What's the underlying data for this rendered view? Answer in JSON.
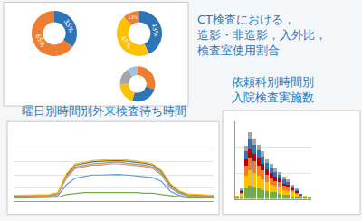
{
  "chart_data": [
    {
      "type": "pie",
      "title": "CT検査における，\n造影・非造影，入外比，\n検査室使用割合",
      "values": [
        35,
        65
      ],
      "colors": [
        "#2e75b6",
        "#ed7d31"
      ],
      "data_labels": true,
      "value_labels": [
        "35%",
        "65%"
      ]
    },
    {
      "type": "pie",
      "values": [
        43,
        45,
        12
      ],
      "colors": [
        "#2e75b6",
        "#ffc000",
        "#ed7d31"
      ],
      "data_labels": true,
      "value_labels": [
        "43%",
        "45%",
        "12%"
      ]
    },
    {
      "type": "pie",
      "values": [
        30,
        25,
        20,
        15,
        10
      ],
      "colors": [
        "#ed7d31",
        "#2e75b6",
        "#ffc000",
        "#a5a5a5",
        "#9dc3e6"
      ],
      "data_labels": false
    },
    {
      "type": "line",
      "title": "曜日別時間別外来検査待ち時間",
      "categories": [
        null,
        null,
        null,
        null,
        null,
        null,
        null,
        null,
        null,
        null,
        null,
        null,
        null,
        null,
        null,
        null,
        null,
        null,
        null,
        null,
        null,
        null,
        null,
        null
      ],
      "series": [
        {
          "color": "#2e75b6",
          "values": [
            8,
            8,
            8,
            8,
            9,
            12,
            40,
            55,
            58,
            60,
            61,
            62,
            62,
            61,
            60,
            58,
            55,
            45,
            25,
            15,
            10,
            9,
            8,
            8
          ]
        },
        {
          "color": "#ed7d31",
          "values": [
            7,
            7,
            7,
            7,
            8,
            11,
            38,
            52,
            55,
            57,
            58,
            59,
            60,
            58,
            57,
            55,
            52,
            42,
            22,
            13,
            9,
            8,
            7,
            7
          ]
        },
        {
          "color": "#a5a5a5",
          "values": [
            6,
            6,
            6,
            6,
            7,
            10,
            35,
            50,
            53,
            55,
            55,
            57,
            57,
            56,
            55,
            53,
            50,
            40,
            20,
            12,
            8,
            7,
            6,
            6
          ]
        },
        {
          "color": "#ffc000",
          "values": [
            9,
            9,
            9,
            9,
            10,
            13,
            42,
            57,
            60,
            62,
            63,
            64,
            64,
            63,
            62,
            60,
            57,
            47,
            27,
            16,
            11,
            10,
            9,
            9
          ]
        },
        {
          "color": "#5b9bd5",
          "values": [
            5,
            5,
            5,
            5,
            6,
            8,
            25,
            35,
            38,
            40,
            40,
            41,
            41,
            40,
            39,
            38,
            36,
            30,
            15,
            9,
            6,
            6,
            5,
            5
          ]
        },
        {
          "color": "#70ad47",
          "values": [
            5,
            5,
            5,
            5,
            5,
            6,
            10,
            12,
            13,
            13,
            13,
            14,
            14,
            13,
            13,
            12,
            12,
            10,
            8,
            6,
            5,
            5,
            5,
            5
          ]
        }
      ],
      "ylim": [
        0,
        100
      ],
      "yticks": [
        0,
        20,
        40,
        60,
        80,
        100
      ],
      "grid": true,
      "tick_labels": false
    },
    {
      "type": "bar",
      "title": "依頼科別時間別\n入院検査実施数",
      "stacked": true,
      "categories": [
        null,
        null,
        null,
        null,
        null,
        null,
        null,
        null,
        null,
        null,
        null,
        null,
        null,
        null,
        null,
        null,
        null,
        null
      ],
      "series": [
        {
          "color": "#70ad47",
          "values": [
            1,
            2,
            8,
            10,
            9,
            8,
            7,
            6,
            5,
            5,
            4,
            3,
            3,
            2,
            2,
            1,
            1,
            1
          ]
        },
        {
          "color": "#ffc000",
          "values": [
            1,
            2,
            10,
            12,
            11,
            10,
            8,
            7,
            6,
            5,
            5,
            4,
            3,
            3,
            2,
            1,
            1,
            0
          ]
        },
        {
          "color": "#ed7d31",
          "values": [
            0,
            1,
            8,
            10,
            9,
            8,
            7,
            6,
            5,
            4,
            4,
            3,
            3,
            2,
            1,
            1,
            0,
            0
          ]
        },
        {
          "color": "#c00000",
          "values": [
            0,
            1,
            5,
            7,
            6,
            6,
            5,
            4,
            4,
            3,
            3,
            2,
            2,
            1,
            1,
            0,
            0,
            0
          ]
        },
        {
          "color": "#2e75b6",
          "values": [
            0,
            1,
            6,
            8,
            7,
            6,
            6,
            5,
            4,
            4,
            3,
            3,
            2,
            2,
            1,
            1,
            0,
            0
          ]
        },
        {
          "color": "#a5a5a5",
          "values": [
            0,
            1,
            4,
            5,
            5,
            4,
            4,
            3,
            3,
            3,
            2,
            2,
            2,
            1,
            1,
            0,
            0,
            0
          ]
        }
      ],
      "ylim": [
        0,
        60
      ],
      "yticks": [
        0,
        20,
        40,
        60
      ],
      "grid": true,
      "tick_labels": false
    }
  ]
}
